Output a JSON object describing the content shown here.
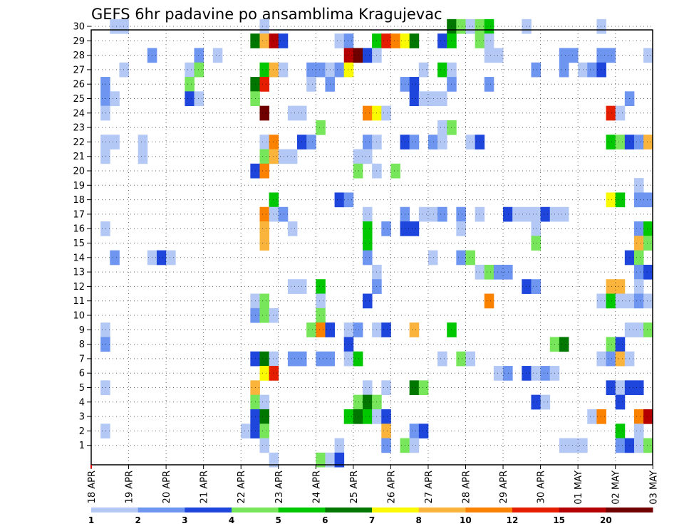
{
  "chart_data": {
    "type": "heatmap",
    "title": "GEFS 6hr padavine po ansamblima Kragujevac",
    "y_ticks": [
      "1",
      "2",
      "3",
      "4",
      "5",
      "6",
      "7",
      "8",
      "9",
      "10",
      "11",
      "12",
      "13",
      "14",
      "15",
      "16",
      "17",
      "18",
      "19",
      "20",
      "21",
      "22",
      "23",
      "24",
      "25",
      "26",
      "27",
      "28",
      "29",
      "30"
    ],
    "x_ticks": [
      "18 APR",
      "19 APR",
      "20 APR",
      "21 APR",
      "22 APR",
      "23 APR",
      "24 APR",
      "25 APR",
      "26 APR",
      "27 APR",
      "28 APR",
      "29 APR",
      "30 APR",
      "01 MAY",
      "02 MAY",
      "03 MAY"
    ],
    "legend_labels": [
      "1",
      "2",
      "3",
      "4",
      "5",
      "6",
      "7",
      "8",
      "10",
      "12",
      "15",
      "20"
    ],
    "colorbar": [
      "#b4c8f5",
      "#6e96f0",
      "#1e46dc",
      "#78e65a",
      "#00c800",
      "#007800",
      "#fafa00",
      "#fab43c",
      "#fa8200",
      "#e61e00",
      "#b40000",
      "#700000"
    ],
    "grid": true,
    "cells": [
      [
        30,
        0.5,
        0
      ],
      [
        30,
        0.75,
        0
      ],
      [
        30,
        4.5,
        0
      ],
      [
        30,
        9.5,
        5
      ],
      [
        30,
        9.75,
        3
      ],
      [
        30,
        10,
        0
      ],
      [
        30,
        10.25,
        3
      ],
      [
        30,
        10.5,
        4
      ],
      [
        30,
        11.5,
        0
      ],
      [
        30,
        13.5,
        0
      ],
      [
        29,
        4.25,
        5
      ],
      [
        29,
        4.5,
        7
      ],
      [
        29,
        4.75,
        10
      ],
      [
        29,
        5,
        2
      ],
      [
        29,
        6.5,
        0
      ],
      [
        29,
        6.75,
        1
      ],
      [
        29,
        7.5,
        4
      ],
      [
        29,
        7.75,
        9
      ],
      [
        29,
        8,
        8
      ],
      [
        29,
        8.25,
        6
      ],
      [
        29,
        8.5,
        5
      ],
      [
        29,
        9.25,
        2
      ],
      [
        29,
        9.5,
        4
      ],
      [
        29,
        10.25,
        3
      ],
      [
        29,
        10.5,
        0
      ],
      [
        28,
        1.5,
        1
      ],
      [
        28,
        2.75,
        1
      ],
      [
        28,
        3.25,
        0
      ],
      [
        28,
        6.75,
        10
      ],
      [
        28,
        7,
        11
      ],
      [
        28,
        7.25,
        2
      ],
      [
        28,
        7.5,
        0
      ],
      [
        28,
        10.5,
        0
      ],
      [
        28,
        10.75,
        0
      ],
      [
        28,
        12.5,
        1
      ],
      [
        28,
        12.75,
        1
      ],
      [
        28,
        13.5,
        1
      ],
      [
        28,
        13.75,
        1
      ],
      [
        28,
        14.75,
        0
      ],
      [
        27,
        0.75,
        0
      ],
      [
        27,
        2.5,
        0
      ],
      [
        27,
        2.75,
        3
      ],
      [
        27,
        4.5,
        4
      ],
      [
        27,
        4.75,
        7
      ],
      [
        27,
        5,
        0
      ],
      [
        27,
        5.75,
        1
      ],
      [
        27,
        6,
        1
      ],
      [
        27,
        6.25,
        0
      ],
      [
        27,
        6.5,
        1
      ],
      [
        27,
        6.75,
        6
      ],
      [
        27,
        8.75,
        0
      ],
      [
        27,
        9.25,
        4
      ],
      [
        27,
        9.5,
        0
      ],
      [
        27,
        11.75,
        1
      ],
      [
        27,
        12.5,
        1
      ],
      [
        27,
        13,
        0
      ],
      [
        27,
        13.25,
        1
      ],
      [
        27,
        13.5,
        2
      ],
      [
        26,
        0.25,
        1
      ],
      [
        26,
        2.5,
        3
      ],
      [
        26,
        4.25,
        5
      ],
      [
        26,
        4.5,
        9
      ],
      [
        26,
        5.75,
        0
      ],
      [
        26,
        6.25,
        1
      ],
      [
        26,
        8.25,
        1
      ],
      [
        26,
        8.5,
        2
      ],
      [
        26,
        9.5,
        1
      ],
      [
        26,
        10.5,
        1
      ],
      [
        25,
        0.25,
        1
      ],
      [
        25,
        0.5,
        0
      ],
      [
        25,
        2.5,
        2
      ],
      [
        25,
        2.75,
        0
      ],
      [
        25,
        4.25,
        3
      ],
      [
        25,
        8.5,
        2
      ],
      [
        25,
        8.75,
        0
      ],
      [
        25,
        9,
        0
      ],
      [
        25,
        9.25,
        0
      ],
      [
        25,
        14.25,
        1
      ],
      [
        24,
        0.25,
        0
      ],
      [
        24,
        4.5,
        11
      ],
      [
        24,
        5.25,
        0
      ],
      [
        24,
        5.5,
        0
      ],
      [
        24,
        7.25,
        8
      ],
      [
        24,
        7.5,
        6
      ],
      [
        24,
        7.75,
        0
      ],
      [
        24,
        13.75,
        9
      ],
      [
        24,
        14,
        0
      ],
      [
        23,
        6,
        3
      ],
      [
        23,
        9.25,
        0
      ],
      [
        23,
        9.5,
        3
      ],
      [
        22,
        0.25,
        0
      ],
      [
        22,
        0.5,
        0
      ],
      [
        22,
        1.25,
        0
      ],
      [
        22,
        4.5,
        0
      ],
      [
        22,
        4.75,
        8
      ],
      [
        22,
        5.5,
        2
      ],
      [
        22,
        5.75,
        1
      ],
      [
        22,
        7.25,
        1
      ],
      [
        22,
        7.5,
        0
      ],
      [
        22,
        8.25,
        2
      ],
      [
        22,
        8.5,
        1
      ],
      [
        22,
        9,
        1
      ],
      [
        22,
        9.25,
        0
      ],
      [
        22,
        10,
        0
      ],
      [
        22,
        10.25,
        2
      ],
      [
        22,
        13.75,
        4
      ],
      [
        22,
        14,
        3
      ],
      [
        22,
        14.25,
        2
      ],
      [
        22,
        14.5,
        1
      ],
      [
        22,
        14.75,
        7
      ],
      [
        21,
        0.25,
        0
      ],
      [
        21,
        1.25,
        0
      ],
      [
        21,
        4.5,
        3
      ],
      [
        21,
        4.75,
        7
      ],
      [
        21,
        5,
        0
      ],
      [
        21,
        5.25,
        0
      ],
      [
        21,
        7,
        0
      ],
      [
        21,
        7.25,
        0
      ],
      [
        20,
        4.25,
        2
      ],
      [
        20,
        4.5,
        8
      ],
      [
        20,
        7,
        3
      ],
      [
        20,
        7.5,
        0
      ],
      [
        20,
        8,
        3
      ],
      [
        19,
        14.5,
        0
      ],
      [
        18,
        4.75,
        4
      ],
      [
        18,
        6.5,
        2
      ],
      [
        18,
        6.75,
        1
      ],
      [
        18,
        13.75,
        6
      ],
      [
        18,
        14,
        4
      ],
      [
        18,
        14.5,
        1
      ],
      [
        18,
        14.75,
        1
      ],
      [
        17,
        4.5,
        8
      ],
      [
        17,
        4.75,
        0
      ],
      [
        17,
        5,
        1
      ],
      [
        17,
        7.25,
        0
      ],
      [
        17,
        8.25,
        1
      ],
      [
        17,
        8.75,
        0
      ],
      [
        17,
        9,
        0
      ],
      [
        17,
        9.25,
        1
      ],
      [
        17,
        9.75,
        1
      ],
      [
        17,
        10.25,
        0
      ],
      [
        17,
        11,
        2
      ],
      [
        17,
        11.25,
        0
      ],
      [
        17,
        11.5,
        0
      ],
      [
        17,
        11.75,
        0
      ],
      [
        17,
        12,
        2
      ],
      [
        17,
        12.25,
        0
      ],
      [
        17,
        12.5,
        0
      ],
      [
        16,
        0.25,
        0
      ],
      [
        16,
        4.5,
        7
      ],
      [
        16,
        5.25,
        0
      ],
      [
        16,
        7.25,
        4
      ],
      [
        16,
        7.75,
        1
      ],
      [
        16,
        8.25,
        2
      ],
      [
        16,
        8.5,
        2
      ],
      [
        16,
        9.75,
        0
      ],
      [
        16,
        11.75,
        0
      ],
      [
        16,
        14.5,
        1
      ],
      [
        16,
        14.75,
        4
      ],
      [
        15,
        4.5,
        7
      ],
      [
        15,
        7.25,
        4
      ],
      [
        15,
        11.75,
        3
      ],
      [
        15,
        14.5,
        7
      ],
      [
        15,
        14.75,
        3
      ],
      [
        14,
        0.5,
        1
      ],
      [
        14,
        1.5,
        0
      ],
      [
        14,
        1.75,
        2
      ],
      [
        14,
        2,
        0
      ],
      [
        14,
        7.25,
        1
      ],
      [
        14,
        9,
        0
      ],
      [
        14,
        9.75,
        1
      ],
      [
        14,
        10,
        3
      ],
      [
        14,
        14.25,
        2
      ],
      [
        14,
        14.5,
        3
      ],
      [
        13,
        7.5,
        0
      ],
      [
        13,
        10.25,
        0
      ],
      [
        13,
        10.5,
        3
      ],
      [
        13,
        10.75,
        1
      ],
      [
        13,
        11,
        1
      ],
      [
        13,
        14.5,
        1
      ],
      [
        13,
        14.75,
        2
      ],
      [
        12,
        5.25,
        0
      ],
      [
        12,
        5.5,
        0
      ],
      [
        12,
        6,
        4
      ],
      [
        12,
        7.5,
        1
      ],
      [
        12,
        11.5,
        2
      ],
      [
        12,
        11.75,
        1
      ],
      [
        12,
        13.75,
        7
      ],
      [
        12,
        14,
        7
      ],
      [
        12,
        14.5,
        0
      ],
      [
        11,
        4.25,
        0
      ],
      [
        11,
        4.5,
        3
      ],
      [
        11,
        6,
        0
      ],
      [
        11,
        7.25,
        2
      ],
      [
        11,
        10.5,
        8
      ],
      [
        11,
        13.5,
        0
      ],
      [
        11,
        13.75,
        4
      ],
      [
        11,
        14,
        0
      ],
      [
        11,
        14.25,
        0
      ],
      [
        11,
        14.5,
        1
      ],
      [
        11,
        14.75,
        0
      ],
      [
        10,
        4.25,
        1
      ],
      [
        10,
        4.5,
        3
      ],
      [
        10,
        4.75,
        0
      ],
      [
        10,
        6,
        3
      ],
      [
        9,
        0.25,
        0
      ],
      [
        9,
        5.75,
        3
      ],
      [
        9,
        6,
        8
      ],
      [
        9,
        6.25,
        2
      ],
      [
        9,
        6.75,
        0
      ],
      [
        9,
        7,
        1
      ],
      [
        9,
        7.5,
        0
      ],
      [
        9,
        7.75,
        2
      ],
      [
        9,
        8.5,
        7
      ],
      [
        9,
        9.5,
        4
      ],
      [
        9,
        14.25,
        0
      ],
      [
        9,
        14.5,
        0
      ],
      [
        9,
        14.75,
        3
      ],
      [
        8,
        0.25,
        1
      ],
      [
        8,
        6.75,
        2
      ],
      [
        8,
        12.25,
        3
      ],
      [
        8,
        12.5,
        5
      ],
      [
        8,
        13.75,
        3
      ],
      [
        8,
        14,
        2
      ],
      [
        7,
        4.25,
        2
      ],
      [
        7,
        4.5,
        5
      ],
      [
        7,
        4.75,
        0
      ],
      [
        7,
        5.25,
        1
      ],
      [
        7,
        5.5,
        1
      ],
      [
        7,
        6,
        1
      ],
      [
        7,
        6.25,
        1
      ],
      [
        7,
        6.75,
        0
      ],
      [
        7,
        7,
        4
      ],
      [
        7,
        9.25,
        0
      ],
      [
        7,
        9.75,
        3
      ],
      [
        7,
        10,
        0
      ],
      [
        7,
        13.5,
        0
      ],
      [
        7,
        13.75,
        1
      ],
      [
        7,
        14,
        7
      ],
      [
        7,
        14.25,
        0
      ],
      [
        6,
        4.5,
        6
      ],
      [
        6,
        4.75,
        9
      ],
      [
        6,
        10.75,
        0
      ],
      [
        6,
        11,
        1
      ],
      [
        6,
        11.5,
        2
      ],
      [
        6,
        11.75,
        0
      ],
      [
        6,
        12,
        1
      ],
      [
        6,
        12.25,
        0
      ],
      [
        5,
        0.25,
        0
      ],
      [
        5,
        4.25,
        7
      ],
      [
        5,
        7.25,
        0
      ],
      [
        5,
        7.75,
        0
      ],
      [
        5,
        8.5,
        5
      ],
      [
        5,
        8.75,
        3
      ],
      [
        5,
        13.75,
        2
      ],
      [
        5,
        14,
        0
      ],
      [
        5,
        14.25,
        2
      ],
      [
        5,
        14.5,
        2
      ],
      [
        4,
        4.25,
        3
      ],
      [
        4,
        4.5,
        0
      ],
      [
        4,
        7,
        3
      ],
      [
        4,
        7.25,
        5
      ],
      [
        4,
        7.5,
        3
      ],
      [
        4,
        11.75,
        2
      ],
      [
        4,
        12,
        0
      ],
      [
        4,
        14,
        2
      ],
      [
        3,
        4.25,
        2
      ],
      [
        3,
        4.5,
        5
      ],
      [
        3,
        6.75,
        4
      ],
      [
        3,
        7,
        5
      ],
      [
        3,
        7.25,
        4
      ],
      [
        3,
        7.5,
        0
      ],
      [
        3,
        7.75,
        2
      ],
      [
        3,
        13.25,
        0
      ],
      [
        3,
        13.5,
        8
      ],
      [
        3,
        14.5,
        8
      ],
      [
        3,
        14.75,
        10
      ],
      [
        2,
        0.25,
        0
      ],
      [
        2,
        4,
        0
      ],
      [
        2,
        4.25,
        2
      ],
      [
        2,
        4.5,
        3
      ],
      [
        2,
        7.75,
        7
      ],
      [
        2,
        8.5,
        1
      ],
      [
        2,
        8.75,
        2
      ],
      [
        2,
        14,
        4
      ],
      [
        2,
        14.5,
        0
      ],
      [
        1,
        4.5,
        0
      ],
      [
        1,
        6.5,
        0
      ],
      [
        1,
        7.75,
        1
      ],
      [
        1,
        8.25,
        3
      ],
      [
        1,
        8.5,
        0
      ],
      [
        1,
        12.5,
        0
      ],
      [
        1,
        12.75,
        0
      ],
      [
        1,
        13,
        0
      ],
      [
        1,
        14,
        1
      ],
      [
        1,
        14.25,
        2
      ],
      [
        1,
        14.5,
        0
      ],
      [
        1,
        14.75,
        3
      ],
      [
        0,
        4.75,
        0
      ],
      [
        0,
        6,
        3
      ],
      [
        0,
        6.25,
        0
      ],
      [
        0,
        6.5,
        2
      ]
    ]
  }
}
